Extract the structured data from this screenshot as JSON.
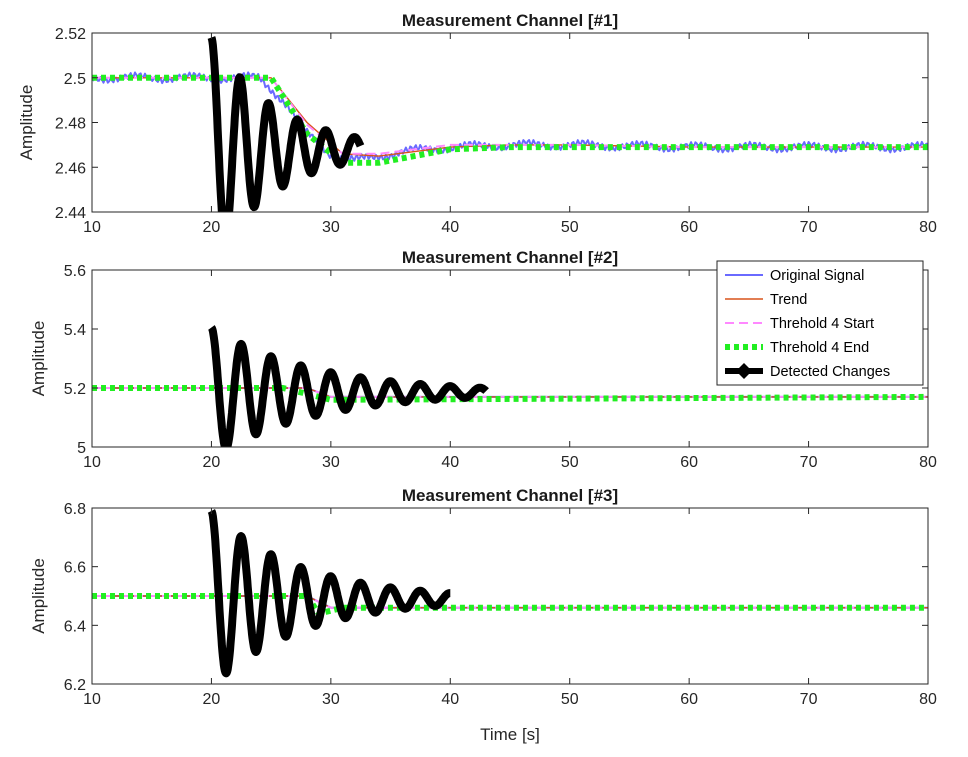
{
  "figure": {
    "xlabel": "Time [s]"
  },
  "legend": {
    "placement": "top-right of panel 2",
    "entries": [
      {
        "label": "Original Signal",
        "color": "#6a6aff",
        "style": "solid"
      },
      {
        "label": "Trend",
        "color": "#d9541a",
        "style": "solid"
      },
      {
        "label": "Threhold 4 Start",
        "color": "#ff88ff",
        "style": "dashed"
      },
      {
        "label": "Threhold 4 End",
        "color": "#22ee22",
        "style": "dotted-thick"
      },
      {
        "label": "Detected Changes",
        "color": "#000000",
        "style": "diamond-thick"
      }
    ]
  },
  "chart_data": [
    {
      "type": "line",
      "title": "Measurement Channel [#1]",
      "xlabel": "",
      "ylabel": "Amplitude",
      "xlim": [
        10,
        80
      ],
      "ylim": [
        2.44,
        2.52
      ],
      "xticks": [
        "10",
        "20",
        "30",
        "40",
        "50",
        "60",
        "70",
        "80"
      ],
      "yticks": [
        "2.44",
        "2.46",
        "2.48",
        "2.5",
        "2.52"
      ],
      "grid": false,
      "series": [
        {
          "name": "Original Signal",
          "x": [
            10,
            20,
            22,
            24,
            26,
            28,
            30,
            32,
            34,
            36,
            40,
            45,
            50,
            60,
            70,
            80
          ],
          "y": [
            2.5,
            2.5,
            2.5,
            2.5,
            2.49,
            2.475,
            2.466,
            2.463,
            2.465,
            2.467,
            2.469,
            2.47,
            2.47,
            2.469,
            2.469,
            2.469
          ]
        },
        {
          "name": "Trend",
          "x": [
            10,
            20,
            25,
            28,
            31,
            34,
            40,
            45,
            50,
            60,
            70,
            80
          ],
          "y": [
            2.5,
            2.5,
            2.5,
            2.48,
            2.466,
            2.465,
            2.469,
            2.47,
            2.47,
            2.469,
            2.469,
            2.469
          ]
        },
        {
          "name": "Threhold 4 Start",
          "x": [
            10,
            20,
            25,
            28,
            31,
            34,
            40,
            45,
            50,
            60,
            70,
            80
          ],
          "y": [
            2.5,
            2.5,
            2.5,
            2.479,
            2.466,
            2.466,
            2.47,
            2.47,
            2.47,
            2.469,
            2.469,
            2.469
          ]
        },
        {
          "name": "Threhold 4 End",
          "x": [
            10,
            20,
            25,
            28,
            31,
            34,
            40,
            45,
            50,
            60,
            70,
            80
          ],
          "y": [
            2.5,
            2.5,
            2.5,
            2.475,
            2.462,
            2.462,
            2.468,
            2.469,
            2.469,
            2.469,
            2.469,
            2.469
          ]
        },
        {
          "name": "Detected Changes",
          "x_range": [
            20,
            32.5
          ],
          "center": 2.468,
          "oscillation": {
            "amplitude_start": 0.05,
            "period_s": 2.4,
            "decay_to": 0.005
          }
        }
      ]
    },
    {
      "type": "line",
      "title": "Measurement Channel [#2]",
      "xlabel": "",
      "ylabel": "Amplitude",
      "xlim": [
        10,
        80
      ],
      "ylim": [
        5,
        5.6
      ],
      "xticks": [
        "10",
        "20",
        "30",
        "40",
        "50",
        "60",
        "70",
        "80"
      ],
      "yticks": [
        "5",
        "5.2",
        "5.4",
        "5.6"
      ],
      "grid": false,
      "series": [
        {
          "name": "Original Signal",
          "x": [
            10,
            20,
            28,
            30,
            80
          ],
          "y": [
            5.2,
            5.2,
            5.2,
            5.17,
            5.17
          ]
        },
        {
          "name": "Trend",
          "x": [
            10,
            20,
            28,
            30,
            80
          ],
          "y": [
            5.2,
            5.2,
            5.2,
            5.17,
            5.17
          ]
        },
        {
          "name": "Threhold 4 Start",
          "x": [
            10,
            20,
            28,
            30,
            80
          ],
          "y": [
            5.2,
            5.2,
            5.2,
            5.17,
            5.17
          ]
        },
        {
          "name": "Threhold 4 End",
          "x": [
            10,
            20,
            26,
            28,
            30,
            80
          ],
          "y": [
            5.2,
            5.2,
            5.2,
            5.18,
            5.16,
            5.17
          ]
        },
        {
          "name": "Detected Changes",
          "x_range": [
            20,
            43
          ],
          "center": 5.185,
          "oscillation": {
            "amplitude_start": 0.22,
            "period_s": 2.5,
            "decay_to": 0.015
          }
        }
      ]
    },
    {
      "type": "line",
      "title": "Measurement Channel [#3]",
      "xlabel": "Time [s]",
      "ylabel": "Amplitude",
      "xlim": [
        10,
        80
      ],
      "ylim": [
        6.2,
        6.8
      ],
      "xticks": [
        "10",
        "20",
        "30",
        "40",
        "50",
        "60",
        "70",
        "80"
      ],
      "yticks": [
        "6.2",
        "6.4",
        "6.6",
        "6.8"
      ],
      "grid": false,
      "series": [
        {
          "name": "Original Signal",
          "x": [
            10,
            20,
            28,
            30,
            80
          ],
          "y": [
            6.5,
            6.5,
            6.5,
            6.46,
            6.46
          ]
        },
        {
          "name": "Trend",
          "x": [
            10,
            20,
            28,
            30,
            80
          ],
          "y": [
            6.5,
            6.5,
            6.5,
            6.46,
            6.46
          ]
        },
        {
          "name": "Threhold 4 Start",
          "x": [
            10,
            20,
            28,
            30,
            80
          ],
          "y": [
            6.5,
            6.5,
            6.5,
            6.46,
            6.46
          ]
        },
        {
          "name": "Threhold 4 End",
          "x": [
            10,
            20,
            28,
            29,
            31,
            80
          ],
          "y": [
            6.5,
            6.5,
            6.5,
            6.44,
            6.46,
            6.46
          ]
        },
        {
          "name": "Detected Changes",
          "x_range": [
            20,
            40
          ],
          "center": 6.49,
          "oscillation": {
            "amplitude_start": 0.3,
            "period_s": 2.5,
            "decay_to": 0.02
          }
        }
      ]
    }
  ]
}
